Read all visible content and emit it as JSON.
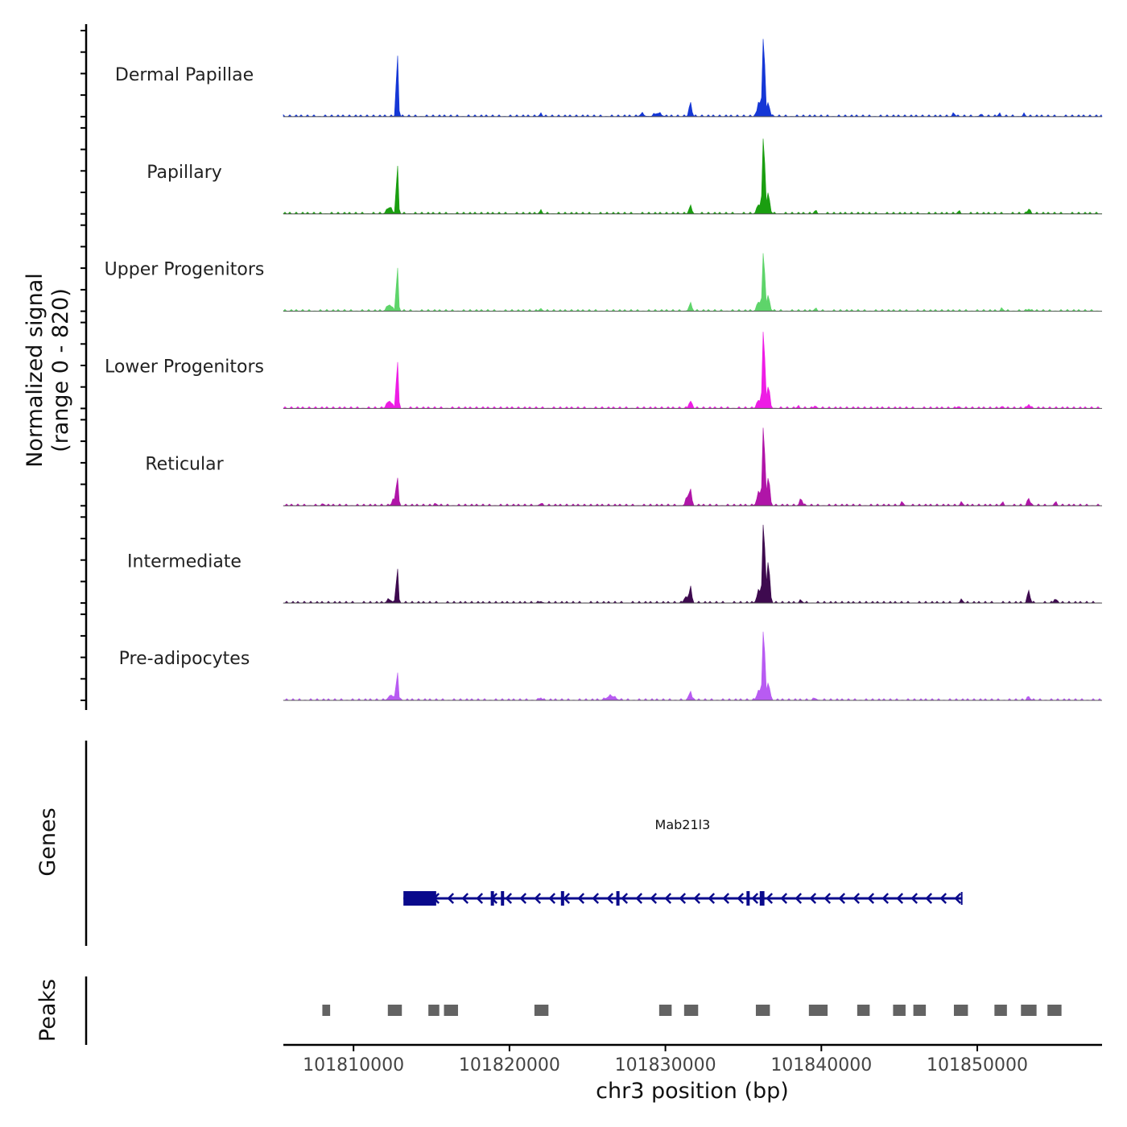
{
  "chart_data": {
    "type": "area",
    "chromosome": "chr3",
    "xlim": [
      101805500,
      101858000
    ],
    "x_ticks": [
      101810000,
      101820000,
      101830000,
      101840000,
      101850000
    ],
    "x_tick_labels": [
      "101810000",
      "101820000",
      "101830000",
      "101840000",
      "101850000"
    ],
    "xlabel": "chr3 position (bp)",
    "ylabel_line1": "Normalized signal",
    "ylabel_line2": "(range 0 - 820)",
    "ylim": [
      0,
      820
    ],
    "tracks": [
      {
        "name": "Dermal Papillae",
        "color": "#1537D6",
        "peaks": [
          [
            101812800,
            640,
            60
          ],
          [
            101831600,
            140,
            80
          ],
          [
            101836300,
            820,
            70
          ],
          [
            101836000,
            150,
            100
          ],
          [
            101836600,
            120,
            90
          ],
          [
            101829500,
            30,
            200
          ],
          [
            101828500,
            25,
            120
          ],
          [
            101822000,
            20,
            80
          ],
          [
            101848500,
            25,
            80
          ],
          [
            101850200,
            20,
            60
          ],
          [
            101851400,
            25,
            60
          ],
          [
            101853000,
            20,
            70
          ]
        ]
      },
      {
        "name": "Papillary",
        "color": "#1A9E10",
        "peaks": [
          [
            101812800,
            500,
            60
          ],
          [
            101812300,
            60,
            150
          ],
          [
            101831600,
            70,
            90
          ],
          [
            101836300,
            790,
            70
          ],
          [
            101836600,
            190,
            90
          ],
          [
            101836000,
            90,
            120
          ],
          [
            101839600,
            25,
            80
          ],
          [
            101822000,
            25,
            80
          ],
          [
            101848800,
            20,
            80
          ],
          [
            101853300,
            45,
            80
          ]
        ]
      },
      {
        "name": "Upper Progenitors",
        "color": "#5ED46A",
        "peaks": [
          [
            101812800,
            450,
            60
          ],
          [
            101812300,
            60,
            150
          ],
          [
            101831600,
            70,
            90
          ],
          [
            101836300,
            590,
            70
          ],
          [
            101836600,
            140,
            90
          ],
          [
            101836000,
            90,
            120
          ],
          [
            101839600,
            20,
            80
          ],
          [
            101822000,
            25,
            80
          ],
          [
            101851600,
            20,
            80
          ],
          [
            101853300,
            20,
            80
          ]
        ]
      },
      {
        "name": "Lower Progenitors",
        "color": "#EE1CE5",
        "peaks": [
          [
            101812800,
            500,
            60
          ],
          [
            101812300,
            70,
            150
          ],
          [
            101831600,
            70,
            90
          ],
          [
            101836300,
            790,
            70
          ],
          [
            101836600,
            210,
            90
          ],
          [
            101836000,
            80,
            120
          ],
          [
            101839600,
            25,
            80
          ],
          [
            101838500,
            15,
            80
          ],
          [
            101848800,
            20,
            80
          ],
          [
            101851600,
            20,
            80
          ],
          [
            101853300,
            40,
            80
          ]
        ]
      },
      {
        "name": "Reticular",
        "color": "#B015A8",
        "peaks": [
          [
            101812800,
            290,
            60
          ],
          [
            101812600,
            60,
            120
          ],
          [
            101831600,
            160,
            70
          ],
          [
            101831400,
            80,
            100
          ],
          [
            101836300,
            800,
            70
          ],
          [
            101836600,
            270,
            90
          ],
          [
            101836000,
            130,
            120
          ],
          [
            101838700,
            60,
            90
          ],
          [
            101845200,
            30,
            80
          ],
          [
            101849000,
            25,
            90
          ],
          [
            101851600,
            25,
            80
          ],
          [
            101853300,
            70,
            80
          ],
          [
            101855000,
            30,
            80
          ],
          [
            101815300,
            15,
            80
          ],
          [
            101822000,
            20,
            80
          ],
          [
            101808100,
            15,
            60
          ]
        ]
      },
      {
        "name": "Intermediate",
        "color": "#3E0A4F",
        "peaks": [
          [
            101812800,
            370,
            60
          ],
          [
            101812300,
            30,
            150
          ],
          [
            101831600,
            170,
            70
          ],
          [
            101831300,
            60,
            100
          ],
          [
            101836300,
            820,
            70
          ],
          [
            101836600,
            400,
            90
          ],
          [
            101836000,
            120,
            120
          ],
          [
            101838700,
            20,
            90
          ],
          [
            101822000,
            15,
            80
          ],
          [
            101849000,
            25,
            90
          ],
          [
            101853300,
            120,
            80
          ],
          [
            101855000,
            40,
            80
          ]
        ]
      },
      {
        "name": "Pre-adipocytes",
        "color": "#B85BF2",
        "peaks": [
          [
            101812800,
            300,
            60
          ],
          [
            101812400,
            50,
            150
          ],
          [
            101831600,
            90,
            80
          ],
          [
            101836300,
            720,
            70
          ],
          [
            101836600,
            170,
            90
          ],
          [
            101836000,
            100,
            120
          ],
          [
            101826500,
            40,
            250
          ],
          [
            101839600,
            20,
            80
          ],
          [
            101822000,
            25,
            80
          ],
          [
            101853300,
            35,
            80
          ]
        ]
      }
    ],
    "gene": {
      "name": "Mab21l3",
      "start": 101813200,
      "end": 101849000,
      "strand": "-",
      "color": "#0A0A8C",
      "exons": [
        [
          101813200,
          101815300
        ],
        [
          101818800,
          101818950
        ],
        [
          101819450,
          101819600
        ],
        [
          101823300,
          101823450
        ],
        [
          101826850,
          101826950
        ],
        [
          101835200,
          101835400
        ],
        [
          101836050,
          101836350
        ]
      ]
    },
    "peaks_track": {
      "color": "#636363",
      "regions": [
        [
          101808000,
          101808500
        ],
        [
          101812200,
          101813100
        ],
        [
          101814800,
          101815500
        ],
        [
          101815800,
          101816700
        ],
        [
          101821600,
          101822500
        ],
        [
          101829600,
          101830400
        ],
        [
          101831200,
          101832100
        ],
        [
          101835800,
          101836700
        ],
        [
          101839200,
          101840400
        ],
        [
          101842300,
          101843100
        ],
        [
          101844600,
          101845400
        ],
        [
          101845900,
          101846700
        ],
        [
          101848500,
          101849400
        ],
        [
          101851100,
          101851900
        ],
        [
          101852800,
          101853800
        ],
        [
          101854500,
          101855400
        ]
      ]
    },
    "panel_labels": {
      "genes": "Genes",
      "peaks": "Peaks"
    }
  }
}
